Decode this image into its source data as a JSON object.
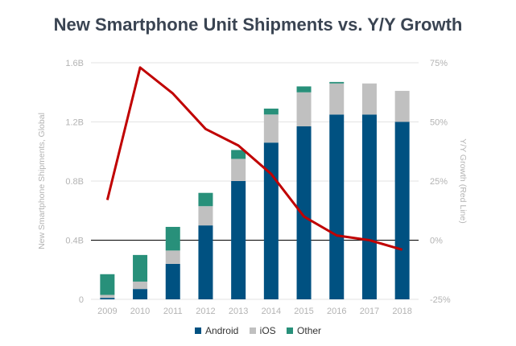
{
  "chart_data": {
    "type": "bar",
    "title": "New Smartphone Unit Shipments vs. Y/Y Growth",
    "ylabel": "New Smartphone Shipments, Global",
    "y2label": "Y/Y Growth (Red Line)",
    "categories": [
      "2009",
      "2010",
      "2011",
      "2012",
      "2013",
      "2014",
      "2015",
      "2016",
      "2017",
      "2018"
    ],
    "ylim": [
      0,
      1.6
    ],
    "y_ticks": [
      0,
      0.4,
      0.8,
      1.2,
      1.6
    ],
    "y_tick_labels": [
      "0",
      "0.4B",
      "0.8B",
      "1.2B",
      "1.6B"
    ],
    "y2lim": [
      -25,
      75
    ],
    "y2_ticks": [
      -25,
      0,
      25,
      50,
      75
    ],
    "y2_tick_labels": [
      "-25%",
      "0%",
      "25%",
      "50%",
      "75%"
    ],
    "stacked": true,
    "series": [
      {
        "name": "Android",
        "color": "#005181",
        "values": [
          0.01,
          0.07,
          0.24,
          0.5,
          0.8,
          1.06,
          1.17,
          1.25,
          1.25,
          1.2
        ]
      },
      {
        "name": "iOS",
        "color": "#c0c0c0",
        "values": [
          0.02,
          0.05,
          0.09,
          0.13,
          0.15,
          0.19,
          0.23,
          0.21,
          0.21,
          0.21
        ]
      },
      {
        "name": "Other",
        "color": "#28907a",
        "values": [
          0.14,
          0.18,
          0.16,
          0.09,
          0.06,
          0.04,
          0.04,
          0.01,
          0.0,
          0.0
        ]
      }
    ],
    "line": {
      "name": "Y/Y Growth",
      "color": "#c00000",
      "axis": "right",
      "values": [
        17,
        73,
        62,
        47,
        40,
        28,
        10,
        2,
        0,
        -4
      ]
    },
    "grid": true,
    "legend_position": "bottom"
  }
}
